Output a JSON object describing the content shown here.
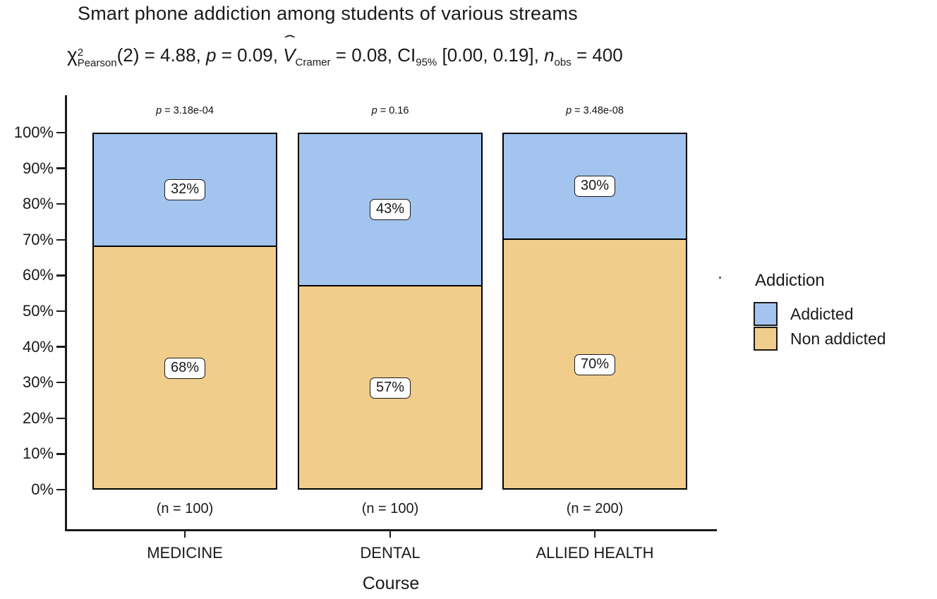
{
  "title": "Smart phone addiction among students of various streams",
  "subtitle": {
    "chi": "χ",
    "chi_sup": "2",
    "chi_sub": "Pearson",
    "seg1": "(2) = 4.88, ",
    "p_sym": "p",
    "seg2": " = 0.09, ",
    "hat": "ˆ",
    "v_sym": "V",
    "v_sub": "Cramer",
    "seg3": " = 0.08, CI",
    "ci_sub": "95%",
    "seg4": " [0.00, 0.19], ",
    "n_sym": "n",
    "n_sub": "obs",
    "seg5": " = 400"
  },
  "chart_data": {
    "type": "bar",
    "subtype": "100%-stacked-column",
    "title": "Smart phone addiction among students of various streams",
    "subtitle_plain": "χ²Pearson(2) = 4.88, p = 0.09, V̂Cramer = 0.08, CI95% [0.00, 0.19], nobs = 400",
    "categories": [
      "MEDICINE",
      "DENTAL",
      "ALLIED HEALTH"
    ],
    "series": [
      {
        "name": "Addicted",
        "color": "#a2c4ee",
        "values": [
          32,
          43,
          30
        ]
      },
      {
        "name": "Non addicted",
        "color": "#f0cd8a",
        "values": [
          68,
          57,
          70
        ]
      }
    ],
    "segment_labels": [
      [
        "32%",
        "68%"
      ],
      [
        "43%",
        "57%"
      ],
      [
        "30%",
        "70%"
      ]
    ],
    "p_symbol": "p",
    "p_values": [
      "3.18e-04",
      "0.16",
      "3.48e-08"
    ],
    "n_labels": [
      "(n = 100)",
      "(n = 100)",
      "(n = 200)"
    ],
    "xlabel": "Course",
    "ylabel": "",
    "ylim": [
      0,
      100
    ],
    "y_tick_step": 10,
    "y_tick_suffix": "%",
    "grid": false,
    "legend": {
      "title": "Addiction",
      "position": "right",
      "entries": [
        {
          "label": "Addicted",
          "color": "#a2c4ee"
        },
        {
          "label": "Non addicted",
          "color": "#f0cd8a"
        }
      ]
    },
    "bar_border_color": "#000000",
    "text_color": "#1a1a1a"
  }
}
